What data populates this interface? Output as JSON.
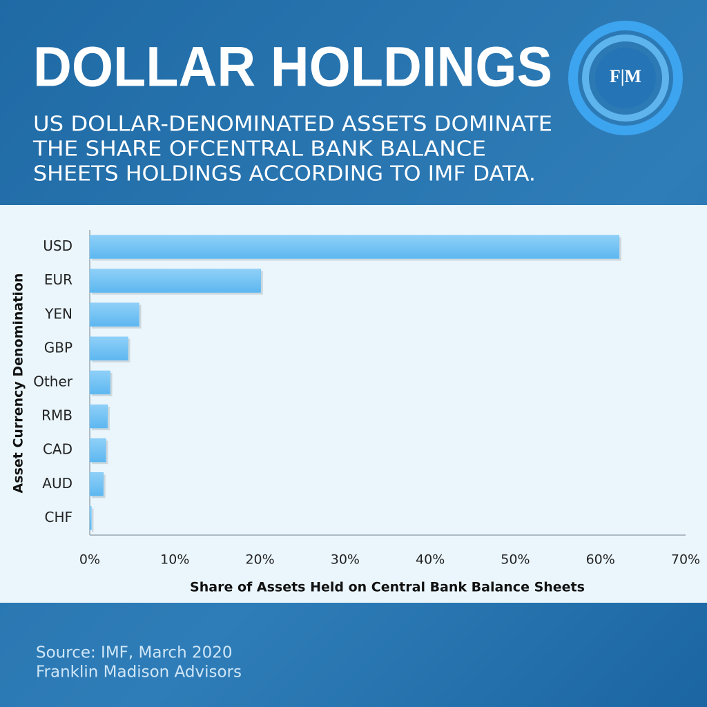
{
  "chart_data": {
    "type": "bar",
    "orientation": "horizontal",
    "title": "DOLLAR HOLDINGS",
    "subtitle": [
      "US DOLLAR-DENOMINATED ASSETS DOMINATE",
      "THE SHARE OFCENTRAL BANK BALANCE",
      "SHEETS HOLDINGS ACCORDING TO IMF DATA."
    ],
    "logo": "F|M",
    "categories": [
      "USD",
      "EUR",
      "YEN",
      "GBP",
      "Other",
      "RMB",
      "CAD",
      "AUD",
      "CHF"
    ],
    "values": [
      62.2,
      20.1,
      5.8,
      4.5,
      2.4,
      2.1,
      1.9,
      1.6,
      0.2
    ],
    "color": "#74c4f4",
    "xlim": [
      0,
      70
    ],
    "xticks": [
      {
        "value": 0,
        "label": "0%"
      },
      {
        "value": 10,
        "label": "10%"
      },
      {
        "value": 20,
        "label": "20%"
      },
      {
        "value": 30,
        "label": "30%"
      },
      {
        "value": 40,
        "label": "40%"
      },
      {
        "value": 50,
        "label": "50%"
      },
      {
        "value": 60,
        "label": "60%"
      },
      {
        "value": 70,
        "label": "70%"
      }
    ],
    "xlabel": "Share of Assets Held on Central Bank Balance Sheets",
    "ylabel": "Asset Currency Denomination",
    "grid": false,
    "source": [
      "Source: IMF, March 2020",
      "Franklin Madison Advisors"
    ]
  }
}
